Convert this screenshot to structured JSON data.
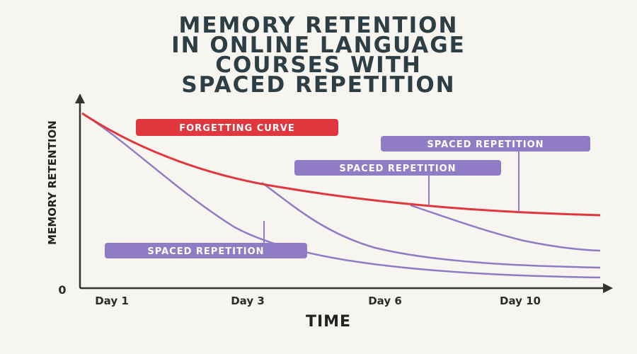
{
  "chart_data": {
    "type": "line",
    "title_lines": [
      "MEMORY RETENTION",
      "IN ONLINE LANGUAGE",
      "COURSES WITH",
      "SPACED REPETITION"
    ],
    "xlabel": "TIME",
    "ylabel": "MEMORY RETENTION",
    "x_ticks": [
      "Day 1",
      "Day 3",
      "Day 6",
      "Day 10"
    ],
    "y_ticks": [
      "0"
    ],
    "grid": false,
    "colors": {
      "forgetting": "#e0363e",
      "spaced": "#8f7cc4",
      "axis": "#333333"
    },
    "series": [
      {
        "name": "FORGETTING CURVE",
        "color": "#e0363e"
      },
      {
        "name": "SPACED REPETITION",
        "color": "#8f7cc4"
      },
      {
        "name": "SPACED REPETITION",
        "color": "#8f7cc4"
      },
      {
        "name": "SPACED REPETITION",
        "color": "#8f7cc4"
      }
    ]
  }
}
